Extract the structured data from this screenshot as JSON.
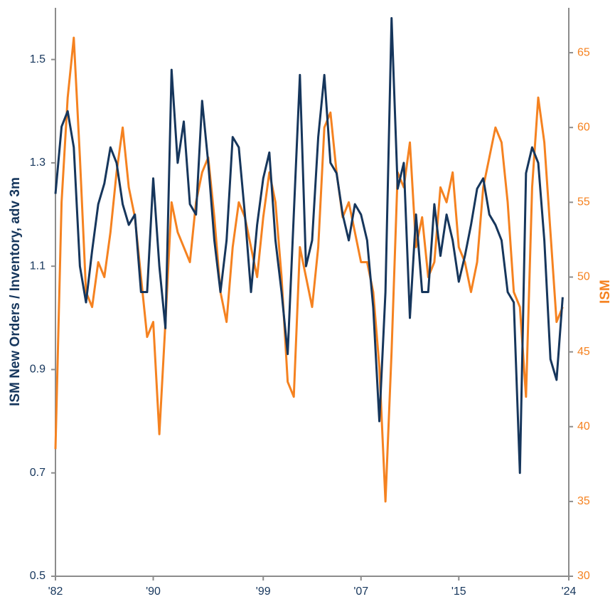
{
  "chart_data": {
    "type": "line",
    "y_label": "ISM New Orders / Inventory, adv 3m",
    "y2_label": "ISM",
    "x": [
      1982.0,
      1982.5,
      1983.0,
      1983.5,
      1984.0,
      1984.5,
      1985.0,
      1985.5,
      1986.0,
      1986.5,
      1987.0,
      1987.5,
      1988.0,
      1988.5,
      1989.0,
      1989.5,
      1990.0,
      1990.5,
      1991.0,
      1991.5,
      1992.0,
      1992.5,
      1993.0,
      1993.5,
      1994.0,
      1994.5,
      1995.0,
      1995.5,
      1996.0,
      1996.5,
      1997.0,
      1997.5,
      1998.0,
      1998.5,
      1999.0,
      1999.5,
      2000.0,
      2000.5,
      2001.0,
      2001.5,
      2002.0,
      2002.5,
      2003.0,
      2003.5,
      2004.0,
      2004.5,
      2005.0,
      2005.5,
      2006.0,
      2006.5,
      2007.0,
      2007.5,
      2008.0,
      2008.5,
      2009.0,
      2009.5,
      2010.0,
      2010.5,
      2011.0,
      2011.5,
      2012.0,
      2012.5,
      2013.0,
      2013.5,
      2014.0,
      2014.5,
      2015.0,
      2015.5,
      2016.0,
      2016.5,
      2017.0,
      2017.5,
      2018.0,
      2018.5,
      2019.0,
      2019.5,
      2020.0,
      2020.5,
      2021.0,
      2021.5,
      2022.0,
      2022.5,
      2023.0,
      2023.5
    ],
    "series": [
      {
        "color": "#16365c",
        "values": [
          1.24,
          1.37,
          1.4,
          1.33,
          1.1,
          1.03,
          1.13,
          1.22,
          1.26,
          1.33,
          1.3,
          1.22,
          1.18,
          1.2,
          1.05,
          1.05,
          1.27,
          1.1,
          0.98,
          1.48,
          1.3,
          1.38,
          1.22,
          1.2,
          1.42,
          1.3,
          1.15,
          1.05,
          1.15,
          1.35,
          1.33,
          1.2,
          1.05,
          1.18,
          1.27,
          1.32,
          1.15,
          1.05,
          0.93,
          1.2,
          1.47,
          1.1,
          1.15,
          1.35,
          1.47,
          1.3,
          1.28,
          1.2,
          1.15,
          1.22,
          1.2,
          1.15,
          1.02,
          0.8,
          1.05,
          1.58,
          1.25,
          1.3,
          1.0,
          1.2,
          1.05,
          1.05,
          1.22,
          1.12,
          1.2,
          1.15,
          1.07,
          1.12,
          1.18,
          1.25,
          1.27,
          1.2,
          1.18,
          1.15,
          1.05,
          1.03,
          0.7,
          1.28,
          1.33,
          1.3,
          1.15,
          0.92,
          0.88,
          1.04
        ]
      },
      {
        "color": "#f58220",
        "axis": "y2",
        "values": [
          38.5,
          55,
          62,
          66,
          58,
          49,
          48,
          51,
          50,
          53,
          57,
          60,
          56,
          54,
          50,
          46,
          47,
          39.5,
          47,
          55,
          53,
          52,
          51,
          55,
          57,
          58,
          54,
          49,
          47,
          52,
          55,
          54,
          52,
          50,
          54,
          57,
          55,
          50,
          43,
          42,
          52,
          50,
          48,
          52,
          60,
          61,
          57,
          54,
          55,
          53,
          51,
          51,
          49,
          44,
          35,
          45,
          57,
          56,
          59,
          52,
          54,
          50,
          51,
          56,
          55,
          57,
          52,
          51,
          49,
          51,
          56,
          58,
          60,
          59,
          55,
          49,
          48,
          42,
          56,
          62,
          59,
          53,
          47,
          48
        ]
      }
    ],
    "xlim": [
      1982,
      2024
    ],
    "xticks": [
      {
        "value": 1982,
        "label": "'82"
      },
      {
        "value": 1990,
        "label": "'90"
      },
      {
        "value": 1999,
        "label": "'99"
      },
      {
        "value": 2007,
        "label": "'07"
      },
      {
        "value": 2015,
        "label": "'15"
      },
      {
        "value": 2024,
        "label": "'24"
      }
    ],
    "ylim": [
      0.5,
      1.6
    ],
    "yticks": [
      0.5,
      0.7,
      0.9,
      1.1,
      1.3,
      1.5
    ],
    "y2lim": [
      30,
      68
    ],
    "y2ticks": [
      30,
      35,
      40,
      45,
      50,
      55,
      60,
      65
    ],
    "grid": false
  }
}
